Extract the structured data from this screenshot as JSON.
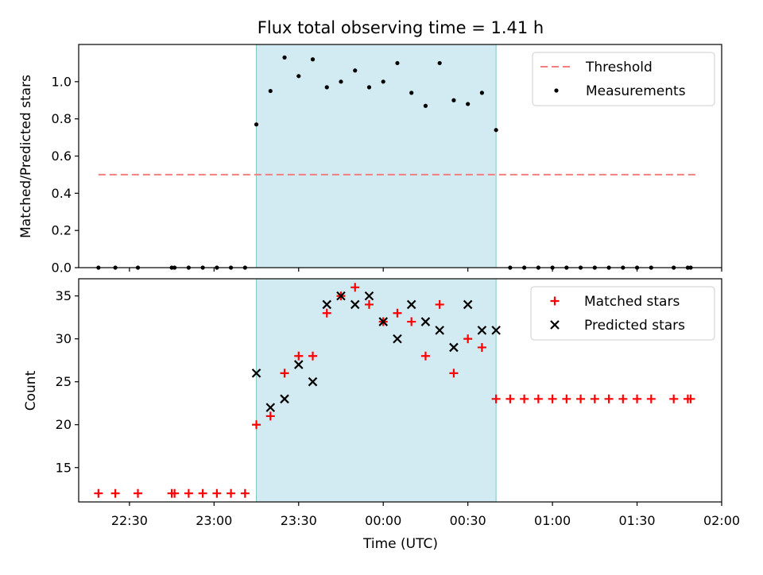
{
  "chart_data": [
    {
      "type": "scatter",
      "title": "Flux total observing time = 1.41 h",
      "xlabel": "",
      "ylabel": "Matched/Predicted stars",
      "xlim": [
        "22:12",
        "02:00"
      ],
      "ylim": [
        0,
        1.2
      ],
      "yticks": [
        0.0,
        0.2,
        0.4,
        0.6,
        0.8,
        1.0
      ],
      "ytick_labels": [
        "0.0",
        "0.2",
        "0.4",
        "0.6",
        "0.8",
        "1.0"
      ],
      "shaded_interval": [
        "23:15",
        "00:40"
      ],
      "shade_color": "#add8e6",
      "legend": {
        "position": "top-right",
        "entries": [
          "Threshold",
          "Measurements"
        ]
      },
      "threshold": {
        "name": "Threshold",
        "value": 0.5,
        "x_range": [
          "22:19",
          "01:51"
        ],
        "color": "#f08080",
        "style": "dashed"
      },
      "series": [
        {
          "name": "Measurements",
          "marker": "dot",
          "color": "#000000",
          "points": [
            [
              "22:19",
              0
            ],
            [
              "22:25",
              0
            ],
            [
              "22:33",
              0
            ],
            [
              "22:45",
              0
            ],
            [
              "22:46",
              0
            ],
            [
              "22:51",
              0
            ],
            [
              "22:56",
              0
            ],
            [
              "23:01",
              0
            ],
            [
              "23:06",
              0
            ],
            [
              "23:11",
              0
            ],
            [
              "23:15",
              0.77
            ],
            [
              "23:20",
              0.95
            ],
            [
              "23:25",
              1.13
            ],
            [
              "23:30",
              1.03
            ],
            [
              "23:35",
              1.12
            ],
            [
              "23:40",
              0.97
            ],
            [
              "23:45",
              1.0
            ],
            [
              "23:50",
              1.06
            ],
            [
              "23:55",
              0.97
            ],
            [
              "00:00",
              1.0
            ],
            [
              "00:05",
              1.1
            ],
            [
              "00:10",
              0.94
            ],
            [
              "00:15",
              0.87
            ],
            [
              "00:20",
              1.1
            ],
            [
              "00:25",
              0.9
            ],
            [
              "00:30",
              0.88
            ],
            [
              "00:35",
              0.94
            ],
            [
              "00:40",
              0.74
            ],
            [
              "00:45",
              0
            ],
            [
              "00:50",
              0
            ],
            [
              "00:55",
              0
            ],
            [
              "01:00",
              0
            ],
            [
              "01:05",
              0
            ],
            [
              "01:10",
              0
            ],
            [
              "01:15",
              0
            ],
            [
              "01:20",
              0
            ],
            [
              "01:25",
              0
            ],
            [
              "01:30",
              0
            ],
            [
              "01:35",
              0
            ],
            [
              "01:43",
              0
            ],
            [
              "01:48",
              0
            ],
            [
              "01:49",
              0
            ]
          ]
        }
      ]
    },
    {
      "type": "scatter",
      "title": "",
      "xlabel": "Time (UTC)",
      "ylabel": "Count",
      "xlim": [
        "22:12",
        "02:00"
      ],
      "ylim": [
        11,
        37
      ],
      "yticks": [
        15,
        20,
        25,
        30,
        35
      ],
      "ytick_labels": [
        "15",
        "20",
        "25",
        "30",
        "35"
      ],
      "xticks": [
        "22:30",
        "23:00",
        "23:30",
        "00:00",
        "00:30",
        "01:00",
        "01:30",
        "02:00"
      ],
      "shaded_interval": [
        "23:15",
        "00:40"
      ],
      "shade_color": "#add8e6",
      "legend": {
        "position": "top-right",
        "entries": [
          "Matched stars",
          "Predicted stars"
        ]
      },
      "series": [
        {
          "name": "Matched stars",
          "marker": "plus",
          "color": "#ff0000",
          "points": [
            [
              "22:19",
              12
            ],
            [
              "22:25",
              12
            ],
            [
              "22:33",
              12
            ],
            [
              "22:45",
              12
            ],
            [
              "22:46",
              12
            ],
            [
              "22:51",
              12
            ],
            [
              "22:56",
              12
            ],
            [
              "23:01",
              12
            ],
            [
              "23:06",
              12
            ],
            [
              "23:11",
              12
            ],
            [
              "23:15",
              20
            ],
            [
              "23:20",
              21
            ],
            [
              "23:25",
              26
            ],
            [
              "23:30",
              28
            ],
            [
              "23:35",
              28
            ],
            [
              "23:40",
              33
            ],
            [
              "23:45",
              35
            ],
            [
              "23:50",
              36
            ],
            [
              "23:55",
              34
            ],
            [
              "00:00",
              32
            ],
            [
              "00:05",
              33
            ],
            [
              "00:10",
              32
            ],
            [
              "00:15",
              28
            ],
            [
              "00:20",
              34
            ],
            [
              "00:25",
              26
            ],
            [
              "00:30",
              30
            ],
            [
              "00:35",
              29
            ],
            [
              "00:40",
              23
            ],
            [
              "00:45",
              23
            ],
            [
              "00:50",
              23
            ],
            [
              "00:55",
              23
            ],
            [
              "01:00",
              23
            ],
            [
              "01:05",
              23
            ],
            [
              "01:10",
              23
            ],
            [
              "01:15",
              23
            ],
            [
              "01:20",
              23
            ],
            [
              "01:25",
              23
            ],
            [
              "01:30",
              23
            ],
            [
              "01:35",
              23
            ],
            [
              "01:43",
              23
            ],
            [
              "01:48",
              23
            ],
            [
              "01:49",
              23
            ]
          ]
        },
        {
          "name": "Predicted stars",
          "marker": "x",
          "color": "#000000",
          "points": [
            [
              "23:15",
              26
            ],
            [
              "23:20",
              22
            ],
            [
              "23:25",
              23
            ],
            [
              "23:30",
              27
            ],
            [
              "23:35",
              25
            ],
            [
              "23:40",
              34
            ],
            [
              "23:45",
              35
            ],
            [
              "23:50",
              34
            ],
            [
              "23:55",
              35
            ],
            [
              "00:00",
              32
            ],
            [
              "00:05",
              30
            ],
            [
              "00:10",
              34
            ],
            [
              "00:15",
              32
            ],
            [
              "00:20",
              31
            ],
            [
              "00:25",
              29
            ],
            [
              "00:30",
              34
            ],
            [
              "00:35",
              31
            ],
            [
              "00:40",
              31
            ]
          ]
        }
      ]
    }
  ]
}
